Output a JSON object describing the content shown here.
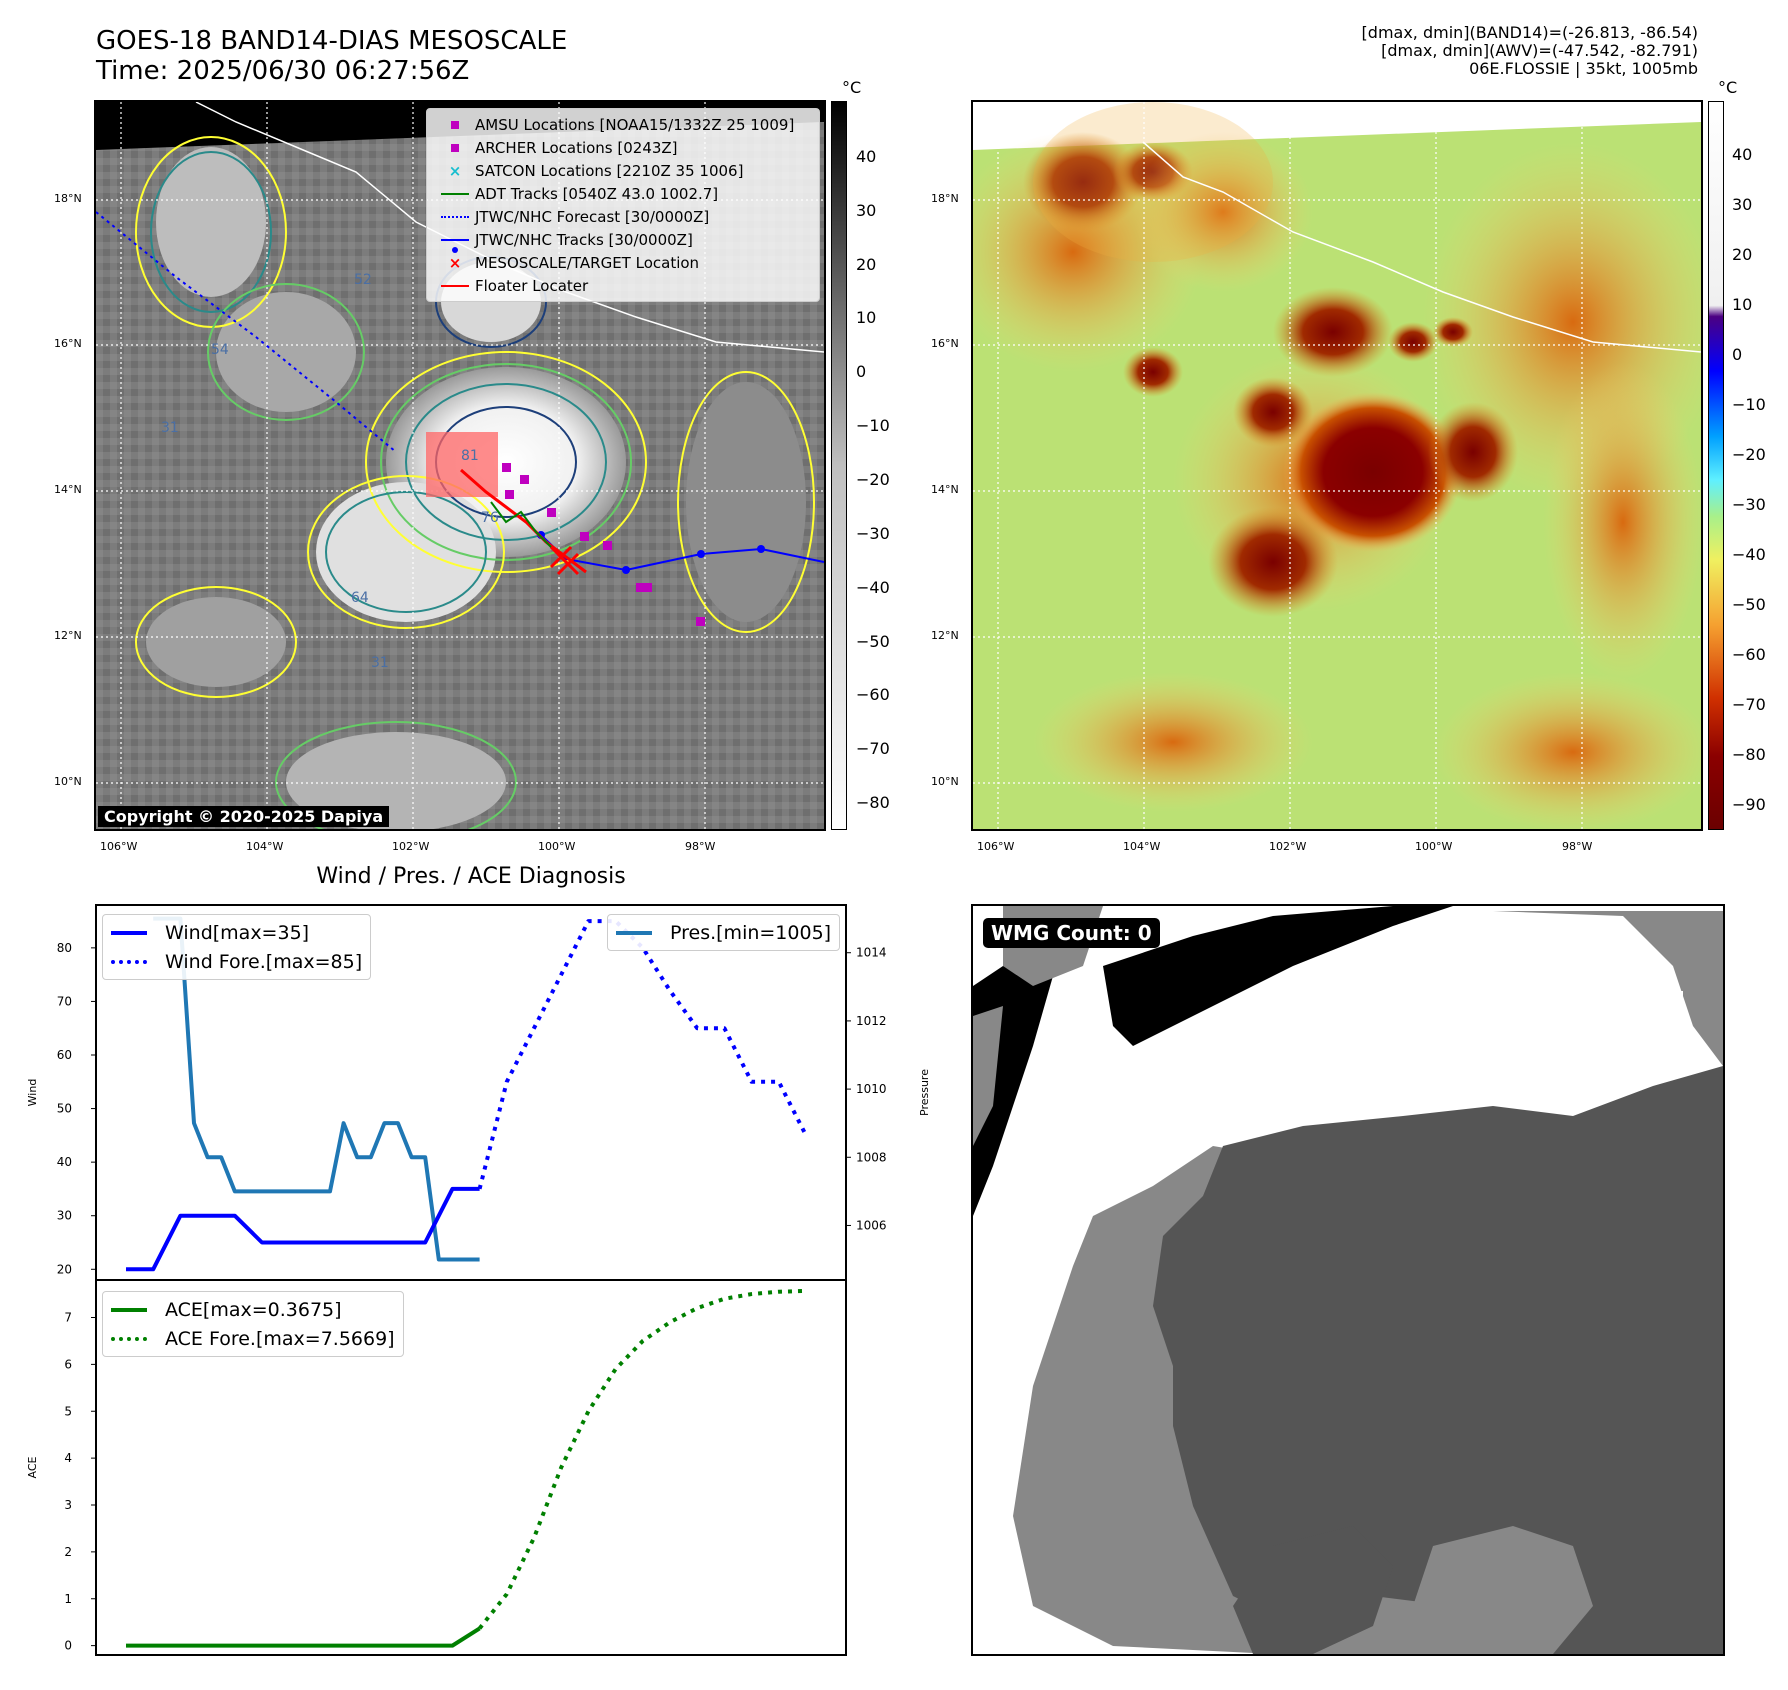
{
  "header": {
    "title_line1": "GOES-18 BAND14-DIAS MESOSCALE",
    "title_line2": "Time: 2025/06/30 06:27:56Z",
    "info_line1": "[dmax, dmin](BAND14)=(-26.813, -86.54)",
    "info_line2": "[dmax, dmin](AWV)=(-47.542, -82.791)",
    "info_line3": "06E.FLOSSIE | 35kt, 1005mb"
  },
  "map_ir": {
    "lat_labels": [
      "18°N",
      "16°N",
      "14°N",
      "12°N",
      "10°N"
    ],
    "lon_labels": [
      "106°W",
      "104°W",
      "102°W",
      "100°W",
      "98°W"
    ],
    "copyright": "Copyright © 2020-2025 Dapiya",
    "contour_labels": [
      "52",
      "54",
      "31",
      "81",
      "76",
      "64",
      "31"
    ],
    "colorbar_unit": "°C",
    "colorbar_ticks": [
      "40",
      "30",
      "20",
      "10",
      "0",
      "−10",
      "−20",
      "−30",
      "−40",
      "−50",
      "−60",
      "−70",
      "−80"
    ],
    "legend": [
      {
        "label": "AMSU Locations [NOAA15/1332Z 25 1009]",
        "symbol": "square",
        "color": "#bf00bf"
      },
      {
        "label": "ARCHER Locations [0243Z]",
        "symbol": "square",
        "color": "#bf00bf"
      },
      {
        "label": "SATCON Locations [2210Z 35 1006]",
        "symbol": "x",
        "color": "#17becf"
      },
      {
        "label": "ADT Tracks [0540Z 43.0 1002.7]",
        "symbol": "line",
        "color": "#008000"
      },
      {
        "label": "JTWC/NHC Forecast [30/0000Z]",
        "symbol": "dotted",
        "color": "#0000ff"
      },
      {
        "label": "JTWC/NHC Tracks [30/0000Z]",
        "symbol": "line-dot",
        "color": "#0000ff"
      },
      {
        "label": "MESOSCALE/TARGET Location",
        "symbol": "x",
        "color": "#ff0000"
      },
      {
        "label": "Floater Locater",
        "symbol": "line",
        "color": "#ff0000"
      }
    ]
  },
  "map_awv": {
    "lat_labels": [
      "18°N",
      "16°N",
      "14°N",
      "12°N",
      "10°N"
    ],
    "lon_labels": [
      "106°W",
      "104°W",
      "102°W",
      "100°W",
      "98°W"
    ],
    "colorbar_unit": "°C",
    "colorbar_ticks": [
      "40",
      "30",
      "20",
      "10",
      "0",
      "−10",
      "−20",
      "−30",
      "−40",
      "−50",
      "−60",
      "−70",
      "−80",
      "−90"
    ]
  },
  "diagnosis": {
    "title": "Wind / Pres. / ACE Diagnosis"
  },
  "chart_data": [
    {
      "type": "line",
      "title": "Wind / Pres. / ACE Diagnosis",
      "ylabel": "Wind",
      "ylabel_right": "Pressure",
      "ylim": [
        18,
        88
      ],
      "ylim_right": [
        1004.4,
        1015.4
      ],
      "yticks": [
        20,
        30,
        40,
        50,
        60,
        70,
        80
      ],
      "yticks_right": [
        1006,
        1008,
        1010,
        1012,
        1014
      ],
      "series": [
        {
          "name": "Wind[max=35]",
          "axis": "left",
          "color": "#0000ff",
          "style": "solid",
          "x": [
            0,
            1,
            2,
            3,
            4,
            5,
            6,
            7,
            8,
            9,
            10,
            11,
            12,
            13
          ],
          "values": [
            20,
            20,
            30,
            30,
            30,
            25,
            25,
            25,
            25,
            25,
            25,
            25,
            35,
            35
          ]
        },
        {
          "name": "Wind Fore.[max=85]",
          "axis": "left",
          "color": "#0000ff",
          "style": "dotted",
          "x": [
            13,
            14,
            15,
            16,
            17,
            18,
            19,
            20,
            21,
            22,
            23,
            24,
            25
          ],
          "values": [
            35,
            55,
            65,
            75,
            85,
            85,
            80,
            72,
            65,
            65,
            55,
            55,
            45
          ]
        },
        {
          "name": "Pres.[min=1005]",
          "axis": "right",
          "color": "#1f77b4",
          "style": "solid",
          "x": [
            1,
            1.5,
            2,
            2.5,
            3,
            3.5,
            4,
            4.5,
            5,
            5.5,
            6,
            6.5,
            7,
            7.5,
            8,
            8.5,
            9,
            9.5,
            10,
            10.5,
            11,
            11.5,
            12,
            12.5,
            13
          ],
          "values": [
            1015,
            1015,
            1015,
            1009,
            1008,
            1008,
            1007,
            1007,
            1007,
            1007,
            1007,
            1007,
            1007,
            1007,
            1009,
            1008,
            1008,
            1009,
            1009,
            1008,
            1008,
            1005,
            1005,
            1005,
            1005
          ]
        }
      ]
    },
    {
      "type": "line",
      "ylabel": "ACE",
      "ylim": [
        -0.2,
        7.8
      ],
      "yticks": [
        0,
        1,
        2,
        3,
        4,
        5,
        6,
        7
      ],
      "series": [
        {
          "name": "ACE[max=0.3675]",
          "color": "#008000",
          "style": "solid",
          "x": [
            0,
            12,
            13
          ],
          "values": [
            0,
            0,
            0.3675
          ]
        },
        {
          "name": "ACE Fore.[max=7.5669]",
          "color": "#008000",
          "style": "dotted",
          "x": [
            13,
            14,
            15,
            16,
            17,
            18,
            19,
            20,
            21,
            22,
            23,
            24,
            25
          ],
          "values": [
            0.3675,
            1.1,
            2.3,
            3.8,
            5.0,
            5.9,
            6.5,
            6.9,
            7.2,
            7.4,
            7.5,
            7.55,
            7.5669
          ]
        }
      ]
    }
  ],
  "wmg": {
    "count_label": "WMG Count: 0"
  }
}
